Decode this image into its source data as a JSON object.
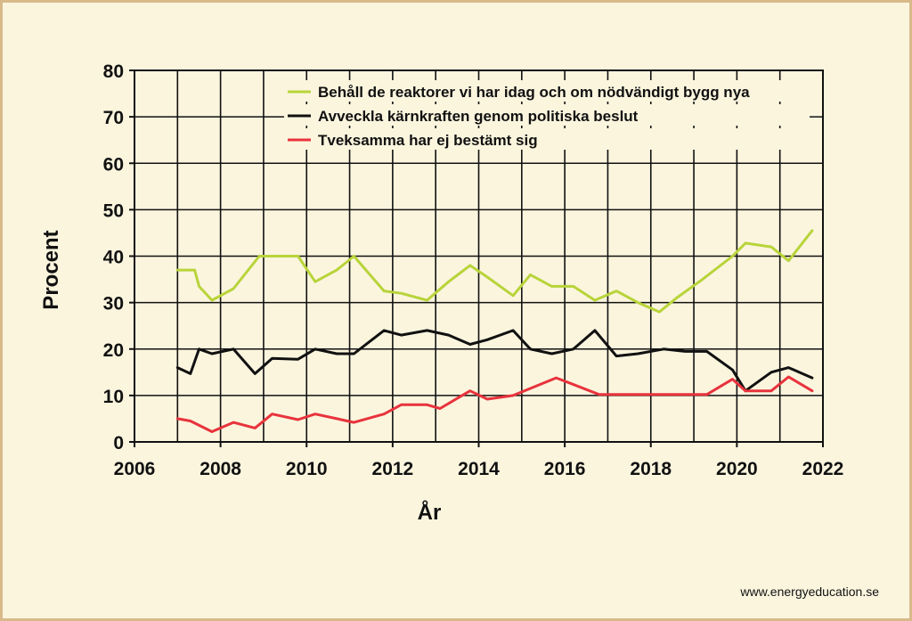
{
  "chart_data": {
    "type": "line",
    "xlabel": "År",
    "ylabel": "Procent",
    "xlim": [
      2006,
      2022
    ],
    "ylim": [
      0,
      80
    ],
    "xticks": [
      "2006",
      "2008",
      "2010",
      "2012",
      "2014",
      "2016",
      "2018",
      "2020",
      "2022"
    ],
    "yticks": [
      "0",
      "10",
      "20",
      "30",
      "40",
      "50",
      "60",
      "70",
      "80"
    ],
    "grid": true,
    "legend_position": "top-right",
    "series": [
      {
        "name": "Behåll de reaktorer vi har idag och om nödvändigt bygg nya",
        "color": "#b8d43a",
        "x": [
          2007.0,
          2007.4,
          2007.5,
          2007.8,
          2008.3,
          2008.9,
          2009.2,
          2009.8,
          2010.2,
          2010.7,
          2011.1,
          2011.8,
          2012.2,
          2012.8,
          2013.3,
          2013.8,
          2014.2,
          2014.8,
          2015.2,
          2015.7,
          2016.2,
          2016.7,
          2017.2,
          2017.7,
          2018.2,
          2018.6,
          2019.2,
          2019.9,
          2020.2,
          2020.8,
          2021.2,
          2021.75
        ],
        "y": [
          37,
          37,
          33.5,
          30.5,
          33,
          40,
          40,
          40,
          34.5,
          37,
          40,
          32.5,
          32,
          30.5,
          34.5,
          38,
          35.5,
          31.5,
          36,
          33.5,
          33.5,
          30.5,
          32.5,
          30,
          28,
          31,
          35,
          40,
          42.8,
          42,
          39,
          45.5
        ]
      },
      {
        "name": "Avveckla kärnkraften genom politiska beslut",
        "color": "#111111",
        "x": [
          2007.0,
          2007.3,
          2007.5,
          2007.8,
          2008.3,
          2008.8,
          2009.2,
          2009.8,
          2010.2,
          2010.7,
          2011.1,
          2011.8,
          2012.2,
          2012.8,
          2013.3,
          2013.8,
          2014.2,
          2014.8,
          2015.2,
          2015.7,
          2016.2,
          2016.7,
          2017.2,
          2017.7,
          2018.3,
          2018.8,
          2019.3,
          2019.9,
          2020.2,
          2020.8,
          2021.2,
          2021.75
        ],
        "y": [
          16,
          14.7,
          20,
          19,
          20,
          14.7,
          18,
          17.8,
          20,
          19,
          19,
          24,
          23,
          24,
          23,
          21,
          22,
          24,
          20,
          19,
          20,
          24,
          18.5,
          19,
          20,
          19.5,
          19.5,
          15.5,
          11,
          15,
          16,
          13.8
        ]
      },
      {
        "name": "Tveksamma har ej bestämt sig",
        "color": "#e8333c",
        "x": [
          2007.0,
          2007.3,
          2007.8,
          2008.3,
          2008.8,
          2009.2,
          2009.8,
          2010.2,
          2010.7,
          2011.1,
          2011.8,
          2012.2,
          2012.8,
          2013.1,
          2013.8,
          2014.2,
          2014.8,
          2015.8,
          2016.8,
          2017.8,
          2018.8,
          2019.3,
          2019.9,
          2020.2,
          2020.8,
          2021.2,
          2021.75
        ],
        "y": [
          5,
          4.5,
          2.2,
          4.2,
          3,
          6,
          4.8,
          6,
          5,
          4.2,
          6,
          8,
          8,
          7.2,
          11,
          9.2,
          10,
          13.8,
          10.2,
          10.2,
          10.2,
          10.2,
          13.5,
          11,
          11,
          14,
          11
        ]
      }
    ]
  },
  "credit": "www.energyeducation.se"
}
